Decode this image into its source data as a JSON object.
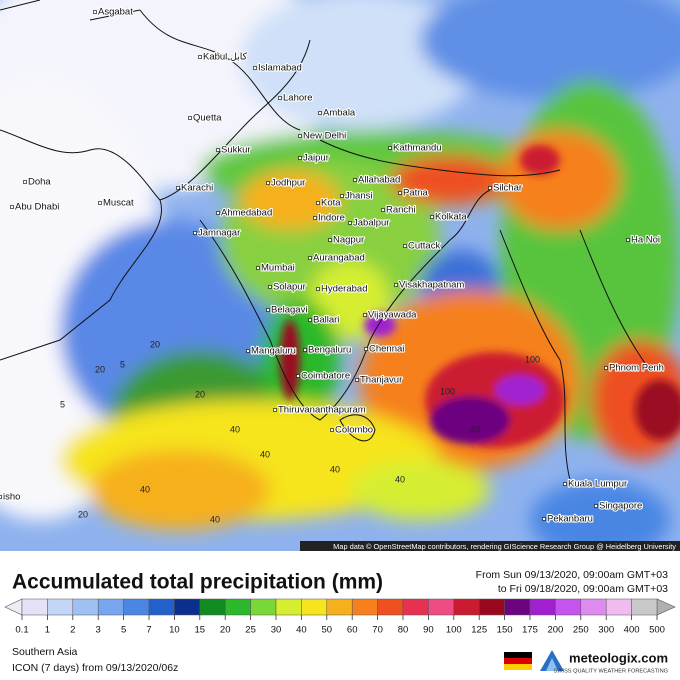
{
  "map": {
    "cities": [
      "Asgabat",
      "Kabul کابل",
      "Islamabad",
      "Lahore",
      "Quetta",
      "Ambala",
      "New Delhi",
      "Sukkur",
      "Jaipur",
      "Kathmandu",
      "Karachi",
      "Jodhpur",
      "Allahabad",
      "Patna",
      "Silchar",
      "Doha",
      "Abu Dhabi",
      "Muscat",
      "Ahmedabad",
      "Kota",
      "Jhansi",
      "Ranchi",
      "Kolkata",
      "Jamnagar",
      "Indore",
      "Jabalpur",
      "Nagpur",
      "Cuttack",
      "Ha Noi",
      "Mumbai",
      "Aurangabad",
      "Solapur",
      "Hyderabad",
      "Visakhapatnam",
      "Belagavi",
      "Ballari",
      "Vijayawada",
      "Mangaluru",
      "Bengaluru",
      "Chennai",
      "Phnom Penh",
      "Coimbatore",
      "Thanjavur",
      "Thiruvananthapuram",
      "Colombo",
      "Kuala Lumpur",
      "Singapore",
      "Pekanbaru",
      "isho"
    ],
    "contour_labels": [
      "20",
      "20",
      "40",
      "40",
      "40",
      "20",
      "40",
      "100",
      "100",
      "40",
      "40",
      "20",
      "5",
      "5",
      "40"
    ],
    "attribution": "Map data © OpenStreetMap contributors, rendering GIScience Research Group @ Heidelberg University"
  },
  "header": {
    "title": "Accumulated total precipitation (mm)",
    "from": "From Sun 09/13/2020, 09:00am GMT+03",
    "to": "to Fri 09/18/2020, 09:00am GMT+03"
  },
  "legend": {
    "ticks": [
      0.1,
      1,
      2,
      3,
      5,
      7,
      10,
      15,
      20,
      25,
      30,
      40,
      50,
      60,
      70,
      80,
      90,
      100,
      125,
      150,
      175,
      200,
      250,
      300,
      400,
      500
    ],
    "colors": [
      "#e4e2f6",
      "#c4d6f6",
      "#9fc0f2",
      "#78a6ee",
      "#4a86e4",
      "#2460cc",
      "#0c2e8c",
      "#128a22",
      "#2cb82a",
      "#78d838",
      "#d6ee30",
      "#f6e41e",
      "#f6b01e",
      "#f6801e",
      "#ee5020",
      "#e63250",
      "#ee4c84",
      "#cc1a30",
      "#9a0820",
      "#6c0480",
      "#a020d0",
      "#c454ee",
      "#de8aee",
      "#f0bcf0",
      "#c8c8c8"
    ],
    "under_color": "#ececf8",
    "over_color": "#b0b0b0"
  },
  "footer": {
    "region": "Southern Asia",
    "model": "ICON (7 days) from  09/13/2020/06z",
    "brand": "meteologix.com",
    "tagline": "SWISS QUALITY WEATHER FORECASTING"
  }
}
